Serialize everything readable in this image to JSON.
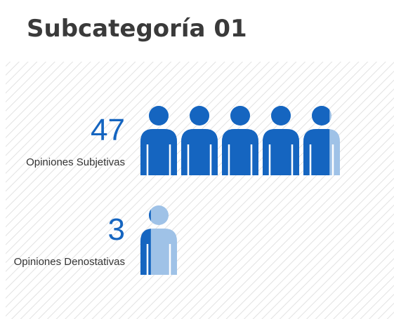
{
  "chart_data": {
    "type": "pictogram",
    "title": "Subcategoría 01",
    "categories": [
      "Opiniones Subjetivas",
      "Opiniones Denostativas"
    ],
    "values": [
      47,
      3
    ],
    "icon_value": 10,
    "color": "#1565c0",
    "empty_color": "#9fc2e7"
  }
}
